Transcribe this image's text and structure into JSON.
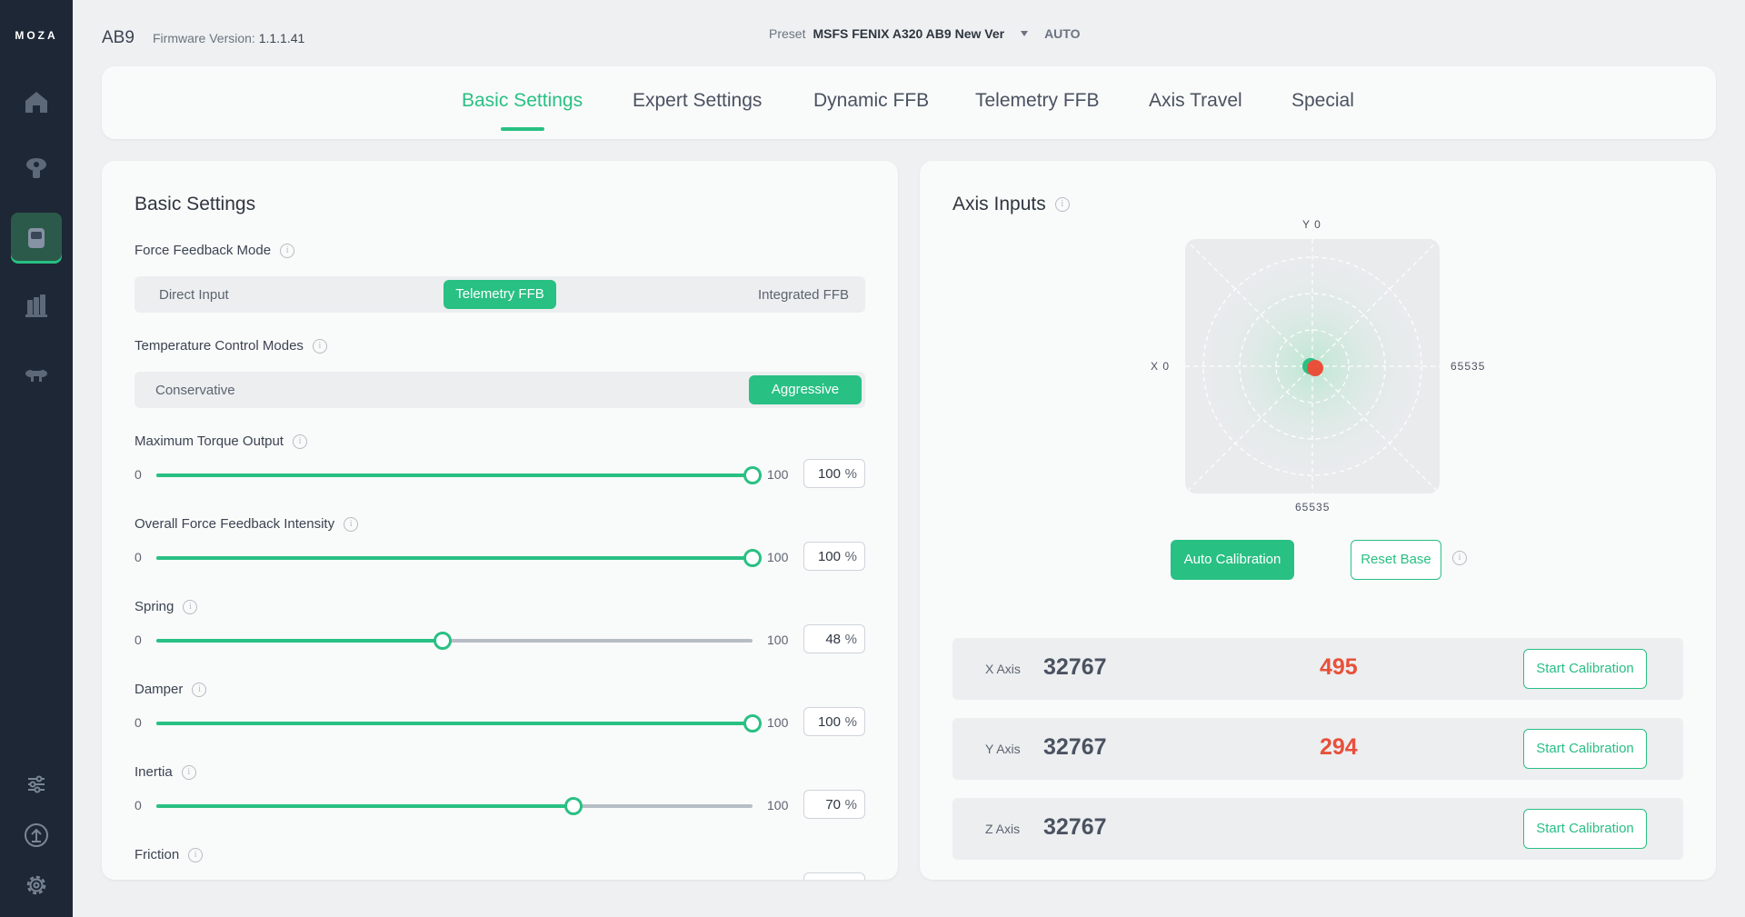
{
  "sidebar": {
    "logo": "MOZA",
    "nav": [
      {
        "name": "home-icon"
      },
      {
        "name": "wheelbase-icon"
      },
      {
        "name": "device-icon",
        "active": true
      },
      {
        "name": "pedals-icon"
      },
      {
        "name": "handbrake-icon"
      }
    ],
    "bottom": [
      {
        "name": "sliders-icon"
      },
      {
        "name": "firmware-upload-icon"
      },
      {
        "name": "gear-icon"
      }
    ]
  },
  "header": {
    "device": "AB9",
    "firmware_label": "Firmware Version:",
    "firmware_version": "1.1.1.41",
    "preset_label": "Preset",
    "preset_value": "MSFS FENIX A320 AB9 New Ver",
    "preset_mode": "AUTO"
  },
  "tabs": [
    {
      "label": "Basic Settings",
      "active": true
    },
    {
      "label": "Expert Settings"
    },
    {
      "label": "Dynamic FFB"
    },
    {
      "label": "Telemetry FFB"
    },
    {
      "label": "Axis Travel"
    },
    {
      "label": "Special"
    }
  ],
  "basic": {
    "title": "Basic Settings",
    "ffb_mode": {
      "label": "Force Feedback Mode",
      "options": [
        "Direct Input",
        "Telemetry FFB",
        "Integrated FFB"
      ],
      "selected": "Telemetry FFB"
    },
    "temp_mode": {
      "label": "Temperature Control Modes",
      "options": [
        "Conservative",
        "Aggressive"
      ],
      "selected": "Aggressive"
    },
    "sliders": [
      {
        "label": "Maximum Torque Output",
        "min": "0",
        "max": "100",
        "value": "100",
        "unit": "%",
        "level": 100
      },
      {
        "label": "Overall Force Feedback Intensity",
        "min": "0",
        "max": "100",
        "value": "100",
        "unit": "%",
        "level": 100
      },
      {
        "label": "Spring",
        "min": "0",
        "max": "100",
        "value": "48",
        "unit": "%",
        "level": 48
      },
      {
        "label": "Damper",
        "min": "0",
        "max": "100",
        "value": "100",
        "unit": "%",
        "level": 100
      },
      {
        "label": "Inertia",
        "min": "0",
        "max": "100",
        "value": "70",
        "unit": "%",
        "level": 70
      }
    ],
    "friction_label": "Friction"
  },
  "axis": {
    "title": "Axis Inputs",
    "y_top": "Y 0",
    "x_left": "X 0",
    "x_right": "65535",
    "y_bottom": "65535",
    "auto_calibration": "Auto Calibration",
    "reset_base": "Reset Base",
    "rows": [
      {
        "name": "X Axis",
        "value": "32767",
        "raw": "495",
        "button": "Start Calibration"
      },
      {
        "name": "Y Axis",
        "value": "32767",
        "raw": "294",
        "button": "Start Calibration"
      },
      {
        "name": "Z Axis",
        "value": "32767",
        "raw": "",
        "button": "Start Calibration"
      }
    ]
  },
  "colors": {
    "accent": "#29c083",
    "sidebar": "#1e2735",
    "raw_value": "#e8503a"
  }
}
